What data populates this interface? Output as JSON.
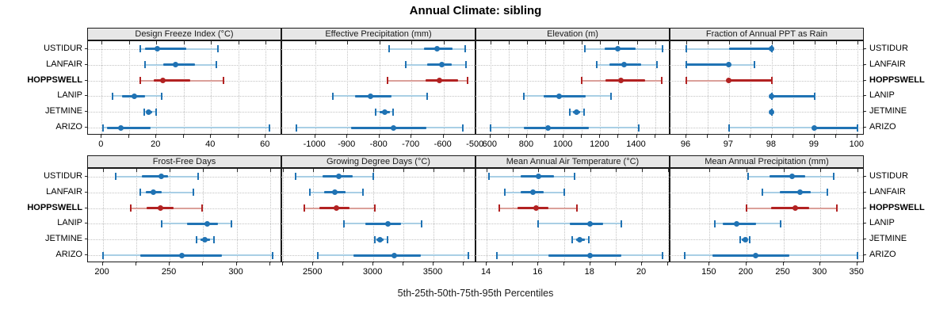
{
  "title": "Annual Climate: sibling",
  "caption": "5th-25th-50th-75th-95th Percentiles",
  "sites": [
    "USTIDUR",
    "LANFAIR",
    "HOPPSWELL",
    "LANIP",
    "JETMINE",
    "ARIZO"
  ],
  "highlight_site": "HOPPSWELL",
  "colors": {
    "series_dark": "#2073B4",
    "series_light": "#A9CFE5",
    "highlight_dark": "#B22222",
    "highlight_light": "#DBA09A",
    "grid": "#c3c3c3",
    "strip_bg": "#e7e7e7",
    "border": "#1a1a1a"
  },
  "chart_data": {
    "type": "percentile-dotplot-trellis",
    "legend_note": "each row: 5th-95th light whisker with end caps, 25th-75th dark bar, dot = 50th percentile",
    "percentiles": [
      "p5",
      "p25",
      "p50",
      "p75",
      "p95"
    ],
    "rows_order": [
      "USTIDUR",
      "LANFAIR",
      "HOPPSWELL",
      "LANIP",
      "JETMINE",
      "ARIZO"
    ],
    "panels": [
      {
        "title": "Design Freeze Index (°C)",
        "grid_row": 0,
        "grid_col": 0,
        "xlim": [
          -5,
          66
        ],
        "gridlines": [
          0,
          10,
          20,
          30,
          40,
          50,
          60
        ],
        "labeled_ticks": [
          0,
          20,
          40,
          60
        ],
        "series": [
          [
            14,
            16,
            20.5,
            31,
            42.5
          ],
          [
            16,
            22.5,
            27,
            34,
            42
          ],
          [
            14,
            19,
            22.5,
            32.5,
            44.5
          ],
          [
            4,
            7.5,
            12,
            16,
            22
          ],
          [
            15.5,
            16.5,
            17.3,
            18.6,
            19.9
          ],
          [
            0.5,
            2,
            7,
            18,
            61.5
          ]
        ]
      },
      {
        "title": "Effective Precipitation (mm)",
        "grid_row": 0,
        "grid_col": 1,
        "xlim": [
          -1103,
          -498
        ],
        "gridlines": [
          -1000,
          -900,
          -800,
          -700,
          -600,
          -500
        ],
        "labeled_ticks": [
          -1000,
          -900,
          -800,
          -700,
          -600,
          -500
        ],
        "series": [
          [
            -770,
            -660,
            -620,
            -572,
            -532
          ],
          [
            -718,
            -650,
            -605,
            -575,
            -529
          ],
          [
            -775,
            -656,
            -613,
            -556,
            -524
          ],
          [
            -944,
            -876,
            -827,
            -762,
            -650
          ],
          [
            -812,
            -800,
            -784,
            -768,
            -758
          ],
          [
            -1059,
            -889,
            -756,
            -654,
            -539
          ]
        ]
      },
      {
        "title": "Elevation (m)",
        "grid_row": 0,
        "grid_col": 2,
        "xlim": [
          523,
          1584
        ],
        "gridlines": [
          600,
          700,
          800,
          900,
          1000,
          1100,
          1200,
          1300,
          1400,
          1500
        ],
        "labeled_ticks": [
          600,
          800,
          1000,
          1200,
          1400
        ],
        "series": [
          [
            1115,
            1225,
            1295,
            1395,
            1540
          ],
          [
            1180,
            1250,
            1330,
            1425,
            1510
          ],
          [
            1100,
            1230,
            1315,
            1445,
            1535
          ],
          [
            785,
            890,
            975,
            1120,
            1260
          ],
          [
            1035,
            1050,
            1070,
            1090,
            1110
          ],
          [
            600,
            785,
            915,
            1140,
            1410
          ]
        ]
      },
      {
        "title": "Fraction of Annual PPT as Rain",
        "grid_row": 0,
        "grid_col": 3,
        "xlim": [
          95.63,
          100.17
        ],
        "gridlines": [
          96,
          96.5,
          97,
          97.5,
          98,
          98.5,
          99,
          99.5,
          100
        ],
        "labeled_ticks": [
          96,
          97,
          98,
          99,
          100
        ],
        "series": [
          [
            96,
            97,
            98,
            98,
            98
          ],
          [
            96,
            96,
            97,
            97,
            97.6
          ],
          [
            96,
            97,
            97,
            98,
            98
          ],
          [
            98,
            98,
            98,
            99,
            99
          ],
          [
            98,
            98,
            98,
            98,
            98
          ],
          [
            97,
            99,
            99,
            100,
            100
          ]
        ]
      },
      {
        "title": "Frost-Free Days",
        "grid_row": 1,
        "grid_col": 0,
        "xlim": [
          189,
          334
        ],
        "gridlines": [
          200,
          225,
          250,
          275,
          300,
          325
        ],
        "labeled_ticks": [
          200,
          250,
          300
        ],
        "series": [
          [
            210,
            229,
            244,
            249,
            271
          ],
          [
            228,
            232,
            238,
            244,
            268
          ],
          [
            221,
            233,
            243,
            253,
            274
          ],
          [
            244,
            263,
            278,
            286,
            296
          ],
          [
            270,
            273,
            276,
            280,
            283
          ],
          [
            200,
            228,
            259,
            289,
            327
          ]
        ]
      },
      {
        "title": "Growing Degree Days (°C)",
        "grid_row": 1,
        "grid_col": 1,
        "xlim": [
          2241,
          3856
        ],
        "gridlines": [
          2250,
          2500,
          2750,
          3000,
          3250,
          3500,
          3750
        ],
        "labeled_ticks": [
          2500,
          3000,
          3500
        ],
        "series": [
          [
            2355,
            2580,
            2710,
            2825,
            3000
          ],
          [
            2475,
            2590,
            2680,
            2770,
            2915
          ],
          [
            2425,
            2550,
            2695,
            2800,
            3015
          ],
          [
            2755,
            2935,
            3120,
            3230,
            3400
          ],
          [
            3010,
            3025,
            3055,
            3085,
            3115
          ],
          [
            2540,
            2835,
            3175,
            3395,
            3790
          ]
        ]
      },
      {
        "title": "Mean Annual Air Temperature (°C)",
        "grid_row": 1,
        "grid_col": 2,
        "xlim": [
          13.6,
          21.1
        ],
        "gridlines": [
          14,
          15,
          16,
          17,
          18,
          19,
          20,
          21
        ],
        "labeled_ticks": [
          14,
          16,
          18,
          20
        ],
        "series": [
          [
            14.1,
            15.3,
            16.0,
            16.6,
            17.4
          ],
          [
            14.7,
            15.3,
            15.8,
            16.2,
            17.0
          ],
          [
            14.5,
            15.2,
            15.9,
            16.4,
            17.5
          ],
          [
            16.0,
            17.2,
            18.0,
            18.5,
            19.2
          ],
          [
            17.3,
            17.45,
            17.6,
            17.8,
            17.95
          ],
          [
            14.4,
            16.4,
            18.0,
            19.2,
            20.8
          ]
        ]
      },
      {
        "title": "Mean Annual Precipitation (mm)",
        "grid_row": 1,
        "grid_col": 3,
        "xlim": [
          97,
          360
        ],
        "gridlines": [
          150,
          200,
          250,
          300,
          350
        ],
        "labeled_ticks": [
          150,
          200,
          250,
          300,
          350
        ],
        "series": [
          [
            202,
            231,
            262,
            280,
            318
          ],
          [
            222,
            245,
            272,
            287,
            310
          ],
          [
            200,
            233,
            266,
            285,
            322
          ],
          [
            157,
            168,
            187,
            213,
            246
          ],
          [
            192,
            194,
            198,
            201,
            204
          ],
          [
            116,
            154,
            212,
            258,
            350
          ]
        ]
      }
    ]
  }
}
